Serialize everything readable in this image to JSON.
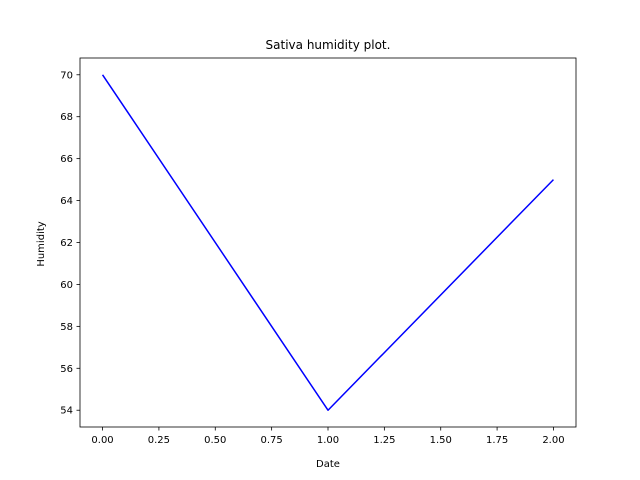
{
  "chart_data": {
    "type": "line",
    "title": "Sativa humidity plot.",
    "xlabel": "Date",
    "ylabel": "Humidity",
    "xlim": [
      -0.1,
      2.1
    ],
    "ylim": [
      53.2,
      70.8
    ],
    "xticks": [
      0.0,
      0.25,
      0.5,
      0.75,
      1.0,
      1.25,
      1.5,
      1.75,
      2.0
    ],
    "xtick_labels": [
      "0.00",
      "0.25",
      "0.50",
      "0.75",
      "1.00",
      "1.25",
      "1.50",
      "1.75",
      "2.00"
    ],
    "yticks": [
      54,
      56,
      58,
      60,
      62,
      64,
      66,
      68,
      70
    ],
    "ytick_labels": [
      "54",
      "56",
      "58",
      "60",
      "62",
      "64",
      "66",
      "68",
      "70"
    ],
    "grid": false,
    "series": [
      {
        "color": "#0000ff",
        "x": [
          0,
          1,
          2
        ],
        "y": [
          70,
          54,
          65
        ]
      }
    ]
  }
}
